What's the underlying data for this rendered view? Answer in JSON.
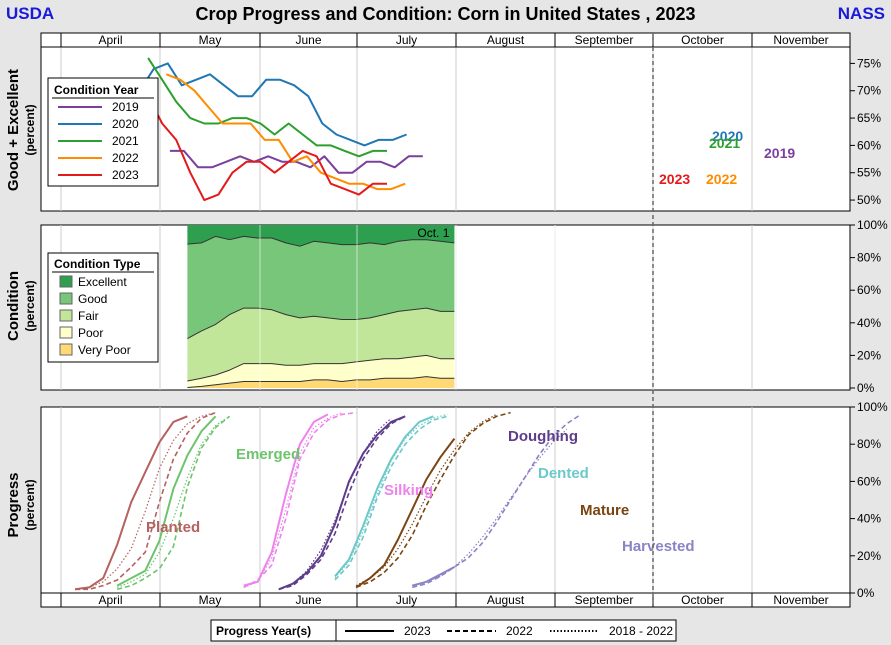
{
  "header": {
    "left_label": "USDA",
    "title": "Crop Progress and Condition: Corn in United States , 2023",
    "right_label": "NASS"
  },
  "colors": {
    "y2019": "#7b3fa0",
    "y2020": "#1f77b4",
    "y2021": "#2ca02c",
    "y2022": "#ff8c00",
    "y2023": "#e31a1c",
    "excellent": "#2e9e4f",
    "good": "#78c679",
    "fair": "#c2e699",
    "poor": "#ffffcc",
    "very_poor": "#fed976",
    "planted": "#b5615f",
    "emerged": "#6cc46c",
    "silking": "#ee82ee",
    "doughing": "#5e3c8a",
    "dented": "#6cc9c9",
    "mature": "#7a4511",
    "harvested": "#8a83c4"
  },
  "axes": {
    "months_top": [
      "April",
      "May",
      "June",
      "July",
      "August",
      "September",
      "October",
      "November"
    ],
    "months_bottom": [
      "April",
      "May",
      "June",
      "July",
      "August",
      "September",
      "October",
      "November"
    ]
  },
  "chart_data": [
    {
      "type": "line",
      "ylabel": "Good + Excellent",
      "ysublabel": "(percent)",
      "ylim": [
        48,
        78
      ],
      "yticks": [
        "75%",
        "70%",
        "65%",
        "60%",
        "55%",
        "50%"
      ],
      "ytick_values": [
        75,
        70,
        65,
        60,
        55,
        50
      ],
      "x_unit": "weeks after April 1",
      "legend": {
        "title": "Condition Year",
        "position": "top-left"
      },
      "series": [
        {
          "name": "2019",
          "color_key": "y2019",
          "end_label": "2019",
          "x": [
            7.75,
            8.75,
            9.75,
            10.75,
            11.75,
            12.75,
            13.75,
            14.75,
            15.75,
            16.75,
            17.75,
            18.75,
            19.75,
            20.75,
            21.75,
            22.75,
            23.75,
            24.75,
            25.75
          ],
          "values": [
            59,
            59,
            56,
            56,
            57,
            58,
            57,
            58,
            57,
            57,
            56,
            58,
            55,
            55,
            57,
            57,
            56,
            58,
            58
          ]
        },
        {
          "name": "2020",
          "color_key": "y2020",
          "end_label": "2020",
          "x": [
            5.6,
            6.6,
            7.6,
            8.6,
            9.6,
            10.6,
            11.6,
            12.6,
            13.6,
            14.6,
            15.6,
            16.6,
            17.6,
            18.6,
            19.6,
            20.6,
            21.6,
            22.6,
            23.6,
            24.6
          ],
          "values": [
            70,
            74,
            75,
            71,
            72,
            73,
            71,
            69,
            69,
            72,
            72,
            71,
            69,
            64,
            62,
            61,
            60,
            61,
            61,
            62
          ]
        },
        {
          "name": "2021",
          "color_key": "y2021",
          "end_label": "2021",
          "x": [
            6.2,
            7.2,
            8.2,
            9.2,
            10.2,
            11.2,
            12.2,
            13.2,
            14.2,
            15.2,
            16.2,
            17.2,
            18.2,
            19.2,
            20.2,
            21.2,
            22.2,
            23.2
          ],
          "values": [
            76,
            72,
            68,
            65,
            64,
            64,
            65,
            65,
            64,
            62,
            64,
            62,
            60,
            60,
            59,
            58,
            59,
            59
          ]
        },
        {
          "name": "2022",
          "color_key": "y2022",
          "end_label": "2022",
          "x": [
            7.5,
            8.5,
            9.5,
            10.5,
            11.5,
            12.5,
            13.5,
            14.5,
            15.5,
            16.5,
            17.5,
            18.5,
            19.5,
            20.5,
            21.5,
            22.5,
            23.5,
            24.5
          ],
          "values": [
            73,
            72,
            70,
            67,
            64,
            64,
            64,
            61,
            61,
            57,
            58,
            55,
            54,
            53,
            53,
            52,
            52,
            53
          ]
        },
        {
          "name": "2023",
          "color_key": "y2023",
          "end_label": "2023",
          "x": [
            6.2,
            7.2,
            8.2,
            9.2,
            10.2,
            11.2,
            12.2,
            13.2,
            14.2,
            15.2,
            16.2,
            17.2,
            18.2,
            19.2,
            20.2,
            21.2,
            22.2,
            23.2
          ],
          "values": [
            69,
            64,
            61,
            55,
            50,
            51,
            55,
            57,
            57,
            55,
            57,
            59,
            58,
            53,
            52,
            51,
            53,
            53
          ]
        }
      ]
    },
    {
      "type": "area",
      "ylabel": "Condition",
      "ysublabel": "(percent)",
      "ylim": [
        0,
        100
      ],
      "yticks": [
        "100%",
        "80%",
        "60%",
        "40%",
        "20%",
        "0%"
      ],
      "ytick_values": [
        100,
        80,
        60,
        40,
        20,
        0
      ],
      "annotation": "Oct. 1",
      "legend": {
        "title": "Condition Type",
        "position": "top-left"
      },
      "layers": [
        {
          "name": "Excellent",
          "color_key": "excellent"
        },
        {
          "name": "Good",
          "color_key": "good"
        },
        {
          "name": "Fair",
          "color_key": "fair"
        },
        {
          "name": "Poor",
          "color_key": "poor"
        },
        {
          "name": "Very Poor",
          "color_key": "very_poor"
        }
      ],
      "x": [
        9.0,
        10.0,
        11.0,
        12.0,
        13.0,
        14.0,
        15.0,
        16.0,
        17.0,
        18.0,
        19.0,
        20.0,
        21.0,
        22.0,
        23.0,
        24.0,
        25.0,
        26.0,
        27.0,
        28.0
      ],
      "very_poor": [
        0.3,
        1,
        2,
        3,
        4,
        4,
        4,
        4,
        4,
        5,
        5,
        4,
        5,
        5,
        6,
        6,
        6,
        7,
        6,
        6
      ],
      "poor": [
        4,
        5,
        6,
        8,
        11,
        11,
        11,
        10,
        10,
        10,
        10,
        11,
        11,
        12,
        12,
        12,
        13,
        13,
        12,
        12
      ],
      "fair": [
        26,
        29,
        31,
        34,
        34,
        34,
        33,
        31,
        29,
        29,
        28,
        27,
        26,
        26,
        27,
        29,
        29,
        29,
        29,
        29
      ],
      "good": [
        58,
        54,
        54,
        46,
        44,
        43,
        44,
        44,
        44,
        46,
        46,
        46,
        46,
        46,
        43,
        43,
        43,
        42,
        43,
        42
      ],
      "excellent": [
        11.7,
        11,
        7,
        9,
        7,
        8,
        8,
        11,
        13,
        10,
        11,
        12,
        12,
        11,
        12,
        10,
        9,
        9,
        10,
        11
      ]
    },
    {
      "type": "line",
      "ylabel": "Progress",
      "ysublabel": "(percent)",
      "ylim": [
        0,
        100
      ],
      "yticks": [
        "100%",
        "80%",
        "60%",
        "40%",
        "20%",
        "0%"
      ],
      "ytick_values": [
        100,
        80,
        60,
        40,
        20,
        0
      ],
      "legend": {
        "title": "Progress Year(s)",
        "position": "bottom",
        "entries": [
          {
            "label": "2023",
            "style": "solid"
          },
          {
            "label": "2022",
            "style": "dashed"
          },
          {
            "label": "2018 - 2022",
            "style": "dotted"
          }
        ]
      },
      "stages": [
        {
          "name": "Planted",
          "color_key": "planted",
          "y2023": {
            "x": [
              1.0,
              2.0,
              3.0,
              4.0,
              5.0,
              6.0,
              7.0,
              8.0,
              9.0
            ],
            "values": [
              2,
              3,
              8,
              26,
              49,
              65,
              81,
              92,
              95
            ]
          },
          "y2022": {
            "x": [
              1.0,
              2.0,
              3.0,
              4.0,
              5.0,
              6.0,
              7.0,
              8.0,
              9.0,
              10.0,
              11.0
            ],
            "values": [
              2,
              2,
              4,
              7,
              14,
              22,
              49,
              72,
              86,
              94,
              97
            ]
          },
          "avg": {
            "x": [
              1.0,
              2.0,
              3.0,
              4.0,
              5.0,
              6.0,
              7.0,
              8.0,
              9.0,
              10.0,
              11.0
            ],
            "values": [
              2,
              3,
              6,
              13,
              24,
              44,
              67,
              82,
              91,
              95,
              97
            ]
          }
        },
        {
          "name": "Emerged",
          "color_key": "emerged",
          "y2023": {
            "x": [
              4.0,
              5.0,
              6.0,
              7.0,
              8.0,
              9.0,
              10.0,
              11.0
            ],
            "values": [
              4,
              8,
              12,
              28,
              56,
              74,
              87,
              95
            ]
          },
          "y2022": {
            "x": [
              4.0,
              5.0,
              6.0,
              7.0,
              8.0,
              9.0,
              10.0,
              11.0,
              12.0
            ],
            "values": [
              2,
              4,
              8,
              13,
              25,
              57,
              78,
              89,
              95
            ]
          },
          "avg": {
            "x": [
              4.0,
              5.0,
              6.0,
              7.0,
              8.0,
              9.0,
              10.0,
              11.0,
              12.0
            ],
            "values": [
              3,
              6,
              10,
              22,
              40,
              62,
              80,
              90,
              95
            ]
          }
        },
        {
          "name": "Silking",
          "color_key": "silking",
          "y2023": {
            "x": [
              13.0,
              14.0,
              15.0,
              16.0,
              17.0,
              18.0,
              19.0
            ],
            "values": [
              4,
              6,
              22,
              53,
              80,
              92,
              96
            ]
          },
          "y2022": {
            "x": [
              13.0,
              14.0,
              15.0,
              16.0,
              17.0,
              18.0,
              19.0,
              20.0,
              21.0
            ],
            "values": [
              3,
              7,
              15,
              40,
              72,
              86,
              93,
              96,
              97
            ]
          },
          "avg": {
            "x": [
              13.0,
              14.0,
              15.0,
              16.0,
              17.0,
              18.0,
              19.0,
              20.0
            ],
            "values": [
              3,
              6,
              19,
              45,
              75,
              89,
              94,
              97
            ]
          }
        },
        {
          "name": "Doughing",
          "color_key": "doughing",
          "y2023": {
            "x": [
              15.5,
              16.5,
              17.5,
              18.5,
              19.5,
              20.5,
              21.5,
              22.5,
              23.5,
              24.5
            ],
            "values": [
              2,
              5,
              11,
              20,
              37,
              60,
              75,
              85,
              92,
              95
            ]
          },
          "y2022": {
            "x": [
              15.5,
              16.5,
              17.5,
              18.5,
              19.5,
              20.5,
              21.5,
              22.5,
              23.5,
              24.5
            ],
            "values": [
              2,
              4,
              10,
              18,
              32,
              54,
              72,
              83,
              91,
              95
            ]
          },
          "avg": {
            "x": [
              15.5,
              16.5,
              17.5,
              18.5,
              19.5,
              20.5,
              21.5,
              22.5,
              23.5
            ],
            "values": [
              2,
              5,
              12,
              23,
              39,
              59,
              75,
              87,
              94
            ]
          }
        },
        {
          "name": "Dented",
          "color_key": "dented",
          "y2023": {
            "x": [
              19.5,
              20.5,
              21.5,
              22.5,
              23.5,
              24.5,
              25.5,
              26.5
            ],
            "values": [
              9,
              18,
              36,
              56,
              72,
              84,
              92,
              95
            ]
          },
          "y2022": {
            "x": [
              19.5,
              20.5,
              21.5,
              22.5,
              23.5,
              24.5,
              25.5,
              26.5,
              27.5
            ],
            "values": [
              7,
              15,
              30,
              51,
              68,
              80,
              88,
              93,
              95
            ]
          },
          "avg": {
            "x": [
              19.5,
              20.5,
              21.5,
              22.5,
              23.5,
              24.5,
              25.5,
              26.5,
              27.5
            ],
            "values": [
              8,
              17,
              33,
              53,
              71,
              83,
              90,
              94,
              96
            ]
          }
        },
        {
          "name": "Mature",
          "color_key": "mature",
          "y2023": {
            "x": [
              21.0,
              22.0,
              23.0,
              24.0,
              25.0,
              26.0,
              27.0,
              28.0
            ],
            "values": [
              3,
              8,
              15,
              29,
              45,
              61,
              73,
              83
            ]
          },
          "y2022": {
            "x": [
              21.0,
              22.0,
              23.0,
              24.0,
              25.0,
              26.0,
              27.0,
              28.0,
              29.0,
              30.0,
              31.0,
              32.0
            ],
            "values": [
              3,
              6,
              11,
              19,
              31,
              47,
              61,
              74,
              85,
              91,
              95,
              97
            ]
          },
          "avg": {
            "x": [
              21.0,
              22.0,
              23.0,
              24.0,
              25.0,
              26.0,
              27.0,
              28.0,
              29.0,
              30.0,
              31.0
            ],
            "values": [
              4,
              8,
              14,
              24,
              37,
              52,
              66,
              77,
              86,
              92,
              96
            ]
          }
        },
        {
          "name": "Harvested",
          "color_key": "harvested",
          "y2023": {
            "x": [
              25.0,
              26.0,
              27.0,
              28.0
            ],
            "values": [
              4,
              6,
              10,
              14
            ]
          },
          "y2022": {
            "x": [
              25.0,
              26.0,
              27.0,
              28.0,
              29.0,
              30.0,
              31.0,
              32.0,
              33.0,
              34.0,
              35.0,
              36.0,
              37.0
            ],
            "values": [
              3,
              5,
              9,
              14,
              19,
              27,
              38,
              50,
              62,
              74,
              84,
              91,
              96
            ]
          },
          "avg": {
            "x": [
              25.0,
              26.0,
              27.0,
              28.0,
              29.0,
              30.0,
              31.0,
              32.0,
              33.0,
              34.0,
              35.0,
              36.0
            ],
            "values": [
              4,
              6,
              9,
              14,
              21,
              30,
              40,
              51,
              62,
              72,
              81,
              88
            ]
          }
        }
      ]
    }
  ]
}
